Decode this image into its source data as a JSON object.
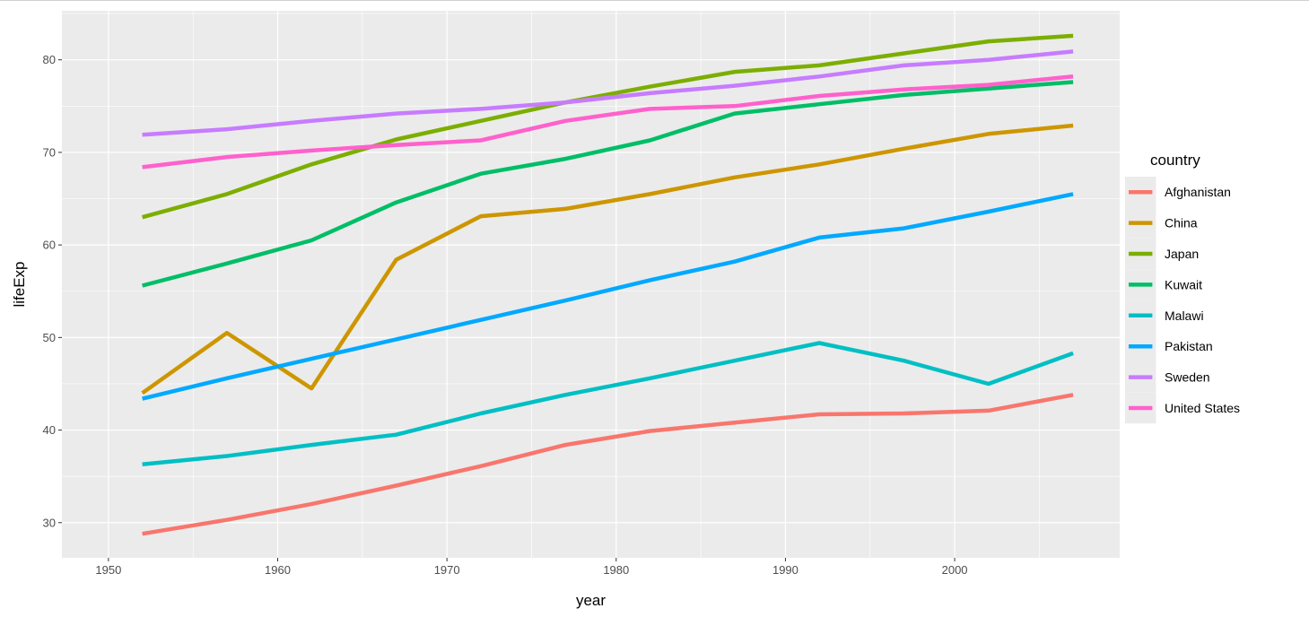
{
  "chart_data": {
    "type": "line",
    "xlabel": "year",
    "ylabel": "lifeExp",
    "xlim": [
      1947.25,
      2009.75
    ],
    "ylim": [
      26.2,
      85.3
    ],
    "x_ticks": [
      1950,
      1960,
      1970,
      1980,
      1990,
      2000
    ],
    "y_ticks": [
      30,
      40,
      50,
      60,
      70,
      80
    ],
    "grid": true,
    "legend": {
      "title": "country",
      "placement": "right"
    },
    "x": [
      1952,
      1957,
      1962,
      1967,
      1972,
      1977,
      1982,
      1987,
      1992,
      1997,
      2002,
      2007
    ],
    "series": [
      {
        "name": "Afghanistan",
        "color": "#F8766D",
        "values": [
          28.8,
          30.3,
          32.0,
          34.0,
          36.1,
          38.4,
          39.9,
          40.8,
          41.7,
          41.8,
          42.1,
          43.8
        ]
      },
      {
        "name": "China",
        "color": "#CD9600",
        "values": [
          44.0,
          50.5,
          44.5,
          58.4,
          63.1,
          63.9,
          65.5,
          67.3,
          68.7,
          70.4,
          72.0,
          72.9
        ]
      },
      {
        "name": "Japan",
        "color": "#7CAE00",
        "values": [
          63.0,
          65.5,
          68.7,
          71.4,
          73.4,
          75.4,
          77.1,
          78.7,
          79.4,
          80.7,
          82.0,
          82.6
        ]
      },
      {
        "name": "Kuwait",
        "color": "#00BE67",
        "values": [
          55.6,
          58.0,
          60.5,
          64.6,
          67.7,
          69.3,
          71.3,
          74.2,
          75.2,
          76.2,
          76.9,
          77.6
        ]
      },
      {
        "name": "Malawi",
        "color": "#00BFC4",
        "values": [
          36.3,
          37.2,
          38.4,
          39.5,
          41.8,
          43.8,
          45.6,
          47.5,
          49.4,
          47.5,
          45.0,
          48.3
        ]
      },
      {
        "name": "Pakistan",
        "color": "#00A9FF",
        "values": [
          43.4,
          45.6,
          47.7,
          49.8,
          51.9,
          54.0,
          56.2,
          58.2,
          60.8,
          61.8,
          63.6,
          65.5
        ]
      },
      {
        "name": "Sweden",
        "color": "#C77CFF",
        "values": [
          71.9,
          72.5,
          73.4,
          74.2,
          74.7,
          75.4,
          76.4,
          77.2,
          78.2,
          79.4,
          80.0,
          80.9
        ]
      },
      {
        "name": "United States",
        "color": "#FF61CC",
        "values": [
          68.4,
          69.5,
          70.2,
          70.8,
          71.3,
          73.4,
          74.7,
          75.0,
          76.1,
          76.8,
          77.3,
          78.2
        ]
      }
    ],
    "colors": {
      "panel": "#EBEBEB",
      "grid": "#FFFFFF",
      "tick_text": "#4D4D4D"
    }
  }
}
